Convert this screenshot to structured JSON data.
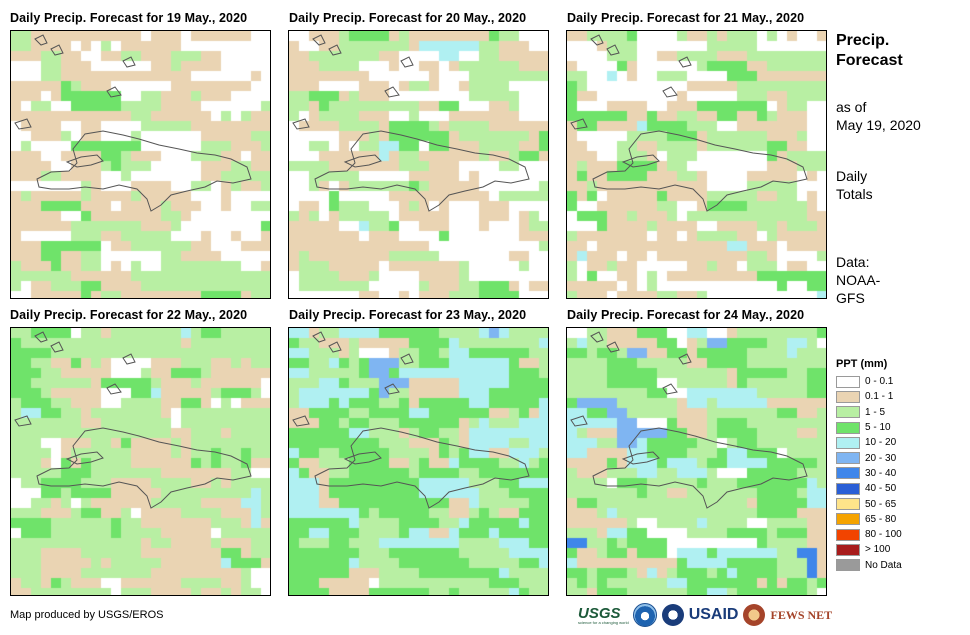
{
  "panels": [
    {
      "title": "Daily Precip. Forecast for 19 May., 2020",
      "day": 0
    },
    {
      "title": "Daily Precip. Forecast for 20 May., 2020",
      "day": 1
    },
    {
      "title": "Daily Precip. Forecast for 21 May., 2020",
      "day": 2
    },
    {
      "title": "Daily Precip. Forecast for 22 May., 2020",
      "day": 3
    },
    {
      "title": "Daily Precip. Forecast for 23 May., 2020",
      "day": 4
    },
    {
      "title": "Daily Precip. Forecast for 24 May., 2020",
      "day": 5
    }
  ],
  "side": {
    "title_line1": "Precip.",
    "title_line2": "Forecast",
    "asof_line1": "as of",
    "asof_line2": "May 19, 2020",
    "totals_line1": "Daily",
    "totals_line2": "Totals",
    "data_line1": "Data:",
    "data_line2": "NOAA-",
    "data_line3": "GFS"
  },
  "legend": {
    "title": "PPT (mm)",
    "items": [
      {
        "label": "0 - 0.1",
        "color": "#ffffff"
      },
      {
        "label": "0.1 - 1",
        "color": "#ead4b3"
      },
      {
        "label": "1 - 5",
        "color": "#b8efa3"
      },
      {
        "label": "5 - 10",
        "color": "#6fe36a"
      },
      {
        "label": "10 - 20",
        "color": "#b0f0f2"
      },
      {
        "label": "20 - 30",
        "color": "#7fb5f2"
      },
      {
        "label": "30 - 40",
        "color": "#3f86ea"
      },
      {
        "label": "40 - 50",
        "color": "#2a5fd6"
      },
      {
        "label": "50 - 65",
        "color": "#ffe48a"
      },
      {
        "label": "65 - 80",
        "color": "#f5a300"
      },
      {
        "label": "80 - 100",
        "color": "#f24400"
      },
      {
        "label": "> 100",
        "color": "#a81c1c"
      },
      {
        "label": "No Data",
        "color": "#9a9a9a"
      }
    ]
  },
  "footer": {
    "credit": "Map produced by USGS/EROS",
    "logo_usgs": "USGS",
    "logo_usgs_tagline": "science for a changing world",
    "logo_usaid": "USAID",
    "logo_fews": "FEWS NET"
  }
}
